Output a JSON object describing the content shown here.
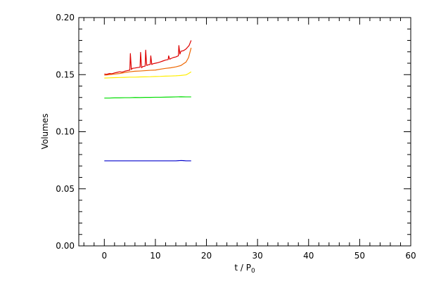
{
  "chart_data": {
    "type": "line",
    "xlabel": "t / P",
    "xlabel_subscript": "0",
    "ylabel": "Volumes",
    "xlim": [
      -5,
      60
    ],
    "ylim": [
      0.0,
      0.2
    ],
    "xticks": [
      0,
      10,
      20,
      30,
      40,
      50,
      60
    ],
    "xtick_labels": [
      "0",
      "10",
      "20",
      "30",
      "40",
      "50",
      "60"
    ],
    "yticks": [
      0.0,
      0.05,
      0.1,
      0.15,
      0.2
    ],
    "ytick_labels": [
      "0.00",
      "0.05",
      "0.10",
      "0.15",
      "0.20"
    ],
    "grid": false,
    "series": [
      {
        "color": "#0000cc",
        "x": [
          0,
          2,
          4,
          6,
          8,
          10,
          12,
          14,
          15,
          15.5,
          16,
          17
        ],
        "y": [
          0.0745,
          0.0745,
          0.0745,
          0.0745,
          0.0745,
          0.0745,
          0.0745,
          0.0745,
          0.0748,
          0.0747,
          0.0745,
          0.0745
        ]
      },
      {
        "color": "#00dd00",
        "x": [
          0,
          1,
          2,
          3,
          4,
          5,
          6,
          7,
          8,
          9,
          10,
          11,
          12,
          13,
          14,
          15,
          16,
          17
        ],
        "y": [
          0.1295,
          0.1295,
          0.1297,
          0.1297,
          0.1298,
          0.1298,
          0.13,
          0.1299,
          0.1301,
          0.1301,
          0.1302,
          0.1302,
          0.1303,
          0.1304,
          0.1305,
          0.1306,
          0.1305,
          0.1305
        ]
      },
      {
        "color": "#ffee00",
        "x": [
          0,
          1,
          2,
          3,
          4,
          5,
          6,
          7,
          8,
          9,
          10,
          11,
          12,
          13,
          14,
          15,
          16,
          16.5,
          17
        ],
        "y": [
          0.147,
          0.1472,
          0.1474,
          0.1475,
          0.1476,
          0.1478,
          0.1478,
          0.148,
          0.1481,
          0.1482,
          0.1484,
          0.1485,
          0.1487,
          0.1488,
          0.149,
          0.1493,
          0.1498,
          0.151,
          0.1525
        ]
      },
      {
        "color": "#ee6600",
        "x": [
          0,
          1,
          2,
          3,
          4,
          5,
          6,
          7,
          8,
          9,
          10,
          11,
          12,
          13,
          14,
          15,
          15.5,
          16,
          16.5,
          17
        ],
        "y": [
          0.1495,
          0.15,
          0.1505,
          0.151,
          0.1518,
          0.1525,
          0.153,
          0.1532,
          0.1535,
          0.1538,
          0.154,
          0.1548,
          0.1555,
          0.156,
          0.1568,
          0.158,
          0.1595,
          0.161,
          0.165,
          0.1735
        ]
      },
      {
        "color": "#dd0000",
        "x": [
          0,
          0.5,
          1,
          1.5,
          2,
          2.5,
          3,
          3.5,
          4,
          4.5,
          5,
          5.1,
          5.3,
          5.5,
          6,
          6.5,
          7,
          7.1,
          7.3,
          7.5,
          8,
          8.1,
          8.3,
          8.5,
          9,
          9.1,
          9.3,
          9.5,
          10,
          10.5,
          11,
          11.5,
          12,
          12.5,
          12.6,
          12.8,
          13,
          13.5,
          14,
          14.5,
          14.6,
          14.8,
          15,
          15.5,
          16,
          16.3,
          16.6,
          17
        ],
        "y": [
          0.1505,
          0.1503,
          0.151,
          0.1508,
          0.1515,
          0.152,
          0.1525,
          0.1522,
          0.153,
          0.1535,
          0.154,
          0.1685,
          0.1545,
          0.1555,
          0.1558,
          0.1562,
          0.1565,
          0.1695,
          0.156,
          0.157,
          0.1575,
          0.1715,
          0.158,
          0.1585,
          0.159,
          0.1665,
          0.1588,
          0.1595,
          0.16,
          0.1605,
          0.1612,
          0.162,
          0.1628,
          0.1632,
          0.1665,
          0.1635,
          0.164,
          0.165,
          0.1655,
          0.1665,
          0.1755,
          0.168,
          0.1705,
          0.171,
          0.1725,
          0.174,
          0.1755,
          0.18
        ]
      }
    ]
  }
}
